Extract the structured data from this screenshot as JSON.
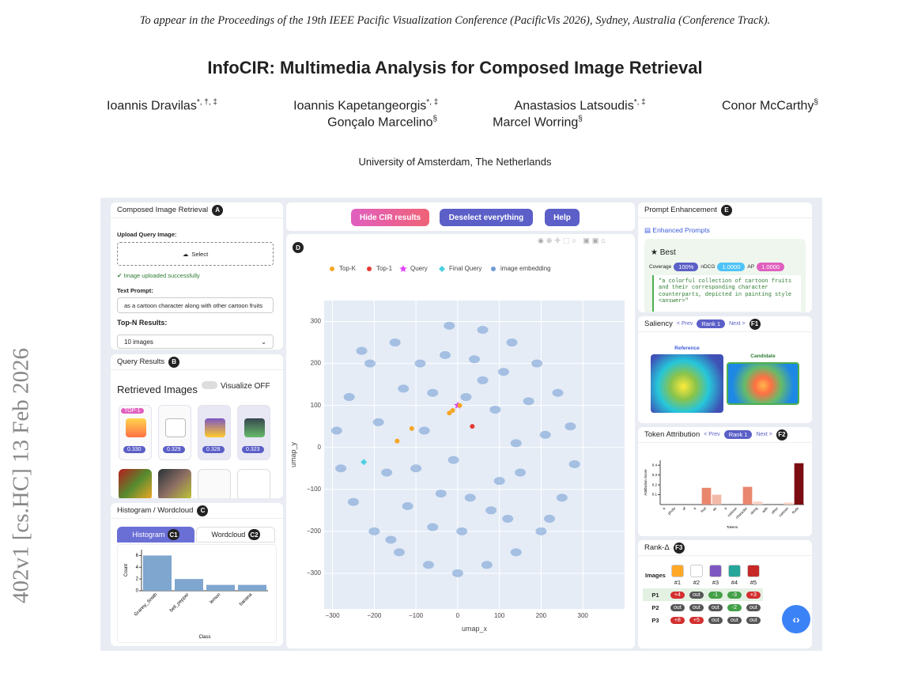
{
  "header": {
    "venue": "To appear in the Proceedings of the 19th IEEE Pacific Visualization Conference (PacificVis 2026), Sydney, Australia (Conference Track).",
    "title": "InfoCIR: Multimedia Analysis for Composed Image Retrieval",
    "authors": [
      [
        {
          "name": "Ioannis Dravilas",
          "marks": "*, †, ‡"
        },
        {
          "name": "Ioannis Kapetangeorgis",
          "marks": "*, ‡"
        },
        {
          "name": "Anastasios Latsoudis",
          "marks": "*, ‡"
        },
        {
          "name": "Conor McCarthy",
          "marks": "§"
        }
      ],
      [
        {
          "name": "Gonçalo Marcelino",
          "marks": "§"
        },
        {
          "name": "Marcel Worring",
          "marks": "§"
        }
      ]
    ],
    "affiliation": "University of Amsterdam, The Netherlands"
  },
  "arxiv_stamp": "402v1 [cs.HC] 13 Feb 2026",
  "figure": {
    "panel_a": {
      "title": "Composed Image Retrieval",
      "badge": "A",
      "upload_label": "Upload Query Image:",
      "select_button": "Select",
      "status": "Image uploaded successfully",
      "prompt_label": "Text Prompt:",
      "prompt_value": "as a cartoon character along with other cartoon fruits",
      "topn_label": "Top-N Results:",
      "topn_value": "10 images"
    },
    "panel_b": {
      "title": "Query Results",
      "badge": "B",
      "heading": "Retrieved Images",
      "toggle": "Visualize OFF",
      "top_tag": "TOP-1",
      "scores": [
        "0.330",
        "0.329",
        "0.328",
        "0.323"
      ]
    },
    "panel_c": {
      "title": "Histogram / Wordcloud",
      "badge": "C",
      "tabs": [
        {
          "label": "Histogram",
          "badge": "C1"
        },
        {
          "label": "Wordcloud",
          "badge": "C2"
        }
      ],
      "chart": {
        "type": "bar",
        "categories": [
          "Granny_Smith",
          "bell_pepper",
          "lemon",
          "banana"
        ],
        "values": [
          6,
          2,
          1,
          1
        ],
        "color": "#7ea6cf",
        "ylim": [
          0,
          7
        ],
        "yticks": [
          0,
          2,
          4,
          6
        ],
        "y_label": "Count",
        "x_label": "Class"
      }
    },
    "panel_d": {
      "badge": "D",
      "buttons": [
        "Hide CIR results",
        "Deselect everything",
        "Help"
      ],
      "chart": {
        "type": "scatter",
        "x_label": "umap_x",
        "y_label": "umap_y",
        "xlim": [
          -320,
          400
        ],
        "ylim": [
          -385,
          350
        ],
        "xticks": [
          -300,
          -200,
          -100,
          0,
          100,
          200,
          300
        ],
        "yticks": [
          {
            "value": -300,
            "label": "−300"
          },
          {
            "value": -200,
            "label": "−200"
          },
          {
            "value": -100,
            "label": "−100"
          },
          0,
          100,
          200,
          300
        ],
        "xticks_labels": [
          {
            "value": -300,
            "label": "−300"
          },
          {
            "value": -200,
            "label": "−200"
          },
          {
            "value": -100,
            "label": "−100"
          }
        ],
        "series": [
          {
            "name": "Top-K",
            "color": "#f5a623",
            "marker": "circle",
            "x": [
              -110,
              -145,
              -12,
              5,
              -20
            ],
            "y": [
              45,
              15,
              88,
              100,
              82
            ]
          },
          {
            "name": "Top-1",
            "color": "#e53935",
            "marker": "circle",
            "x": [
              35
            ],
            "y": [
              50
            ]
          },
          {
            "name": "Query",
            "color": "#e040fb",
            "marker": "star",
            "x": [
              0
            ],
            "y": [
              100
            ]
          },
          {
            "name": "Final Query",
            "color": "#4dd0e1",
            "marker": "diamond",
            "x": [
              -225
            ],
            "y": [
              -35
            ]
          },
          {
            "name": "image embedding",
            "color": "#6f9bd1",
            "marker": "cluster",
            "x": [
              -20,
              60,
              130,
              190,
              240,
              270,
              280,
              250,
              200,
              140,
              70,
              0,
              -70,
              -140,
              -200,
              -250,
              -280,
              -290,
              -260,
              -210,
              -150,
              -90,
              -30,
              40,
              110,
              170,
              210,
              150,
              80,
              10,
              -60,
              -120,
              -170,
              -190,
              -130,
              -60,
              20,
              90,
              140,
              100,
              30,
              -40,
              -100,
              -80,
              60,
              120,
              -10,
              -160,
              220,
              -230
            ],
            "y": [
              290,
              280,
              250,
              200,
              130,
              50,
              -40,
              -120,
              -200,
              -250,
              -280,
              -300,
              -280,
              -250,
              -200,
              -130,
              -50,
              40,
              120,
              200,
              250,
              200,
              220,
              210,
              180,
              110,
              30,
              -60,
              -150,
              -200,
              -190,
              -140,
              -60,
              60,
              140,
              130,
              120,
              90,
              10,
              -80,
              -120,
              -110,
              -50,
              40,
              160,
              -170,
              -30,
              -220,
              -170,
              230
            ]
          }
        ]
      }
    },
    "panel_e": {
      "title": "Prompt Enhancement",
      "badge": "E",
      "section": "Enhanced Prompts",
      "best": "Best",
      "metrics": [
        {
          "label": "Coverage",
          "value": "100%"
        },
        {
          "label": "nDCG",
          "value": "1.0000"
        },
        {
          "label": "AP",
          "value": "1.0000"
        }
      ],
      "prompt": "\"a colorful collection of cartoon fruits and their corresponding character counterparts, depicted in painting style <answer>\""
    },
    "panel_f1": {
      "title": "Saliency",
      "badge": "F1",
      "prev": "< Prev",
      "rank": "Rank 1",
      "next": "Next >",
      "reference": "Reference",
      "candidate": "Candidate"
    },
    "panel_f2": {
      "title": "Token Attribution",
      "badge": "F2",
      "prev": "< Prev",
      "rank": "Rank 1",
      "next": "Next >",
      "chart": {
        "type": "bar",
        "categories": [
          "a",
          "photo",
          "of",
          "a",
          "fruit",
          "as",
          "a",
          "cartoon",
          "character",
          "along",
          "with",
          "other",
          "cartoon",
          "fruits"
        ],
        "values": [
          0,
          0,
          0,
          0,
          0.17,
          0.1,
          0,
          0,
          0.18,
          0.03,
          0,
          0,
          0.02,
          0.42
        ],
        "colors": [
          "#e8876e",
          "#e8876e",
          "#e8876e",
          "#e8876e",
          "#e8876e",
          "#f2b9a8",
          "#e8876e",
          "#e8876e",
          "#e8876e",
          "#f7d2c5",
          "#e8876e",
          "#e8876e",
          "#f7d2c5",
          "#7b0d12"
        ],
        "ylim": [
          0,
          0.45
        ],
        "yticks": [
          0.1,
          0.2,
          0.3,
          0.4
        ],
        "y_label": "Attribution Score",
        "x_label": "Tokens"
      }
    },
    "panel_f3": {
      "title": "Rank-Δ",
      "badge": "F3",
      "images_label": "Images",
      "columns": [
        "#1",
        "#2",
        "#3",
        "#4",
        "#5"
      ],
      "rows": [
        {
          "label": "P1",
          "cells": [
            "+4",
            "out",
            "-1",
            "-3",
            "+3"
          ]
        },
        {
          "label": "P2",
          "cells": [
            "out",
            "out",
            "out",
            "-2",
            "out"
          ]
        },
        {
          "label": "P3",
          "cells": [
            "+8",
            "+5",
            "out",
            "out",
            "out"
          ]
        }
      ]
    }
  }
}
